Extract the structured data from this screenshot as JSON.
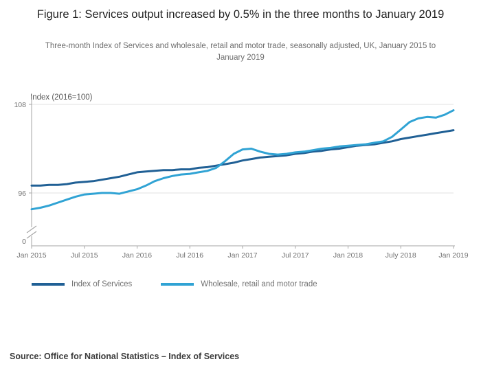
{
  "title": "Figure 1: Services output increased by 0.5% in the three months to January 2019",
  "subtitle": "Three-month Index of Services and wholesale, retail and motor trade, seasonally adjusted, UK, January 2015 to January 2019",
  "source": "Source: Office for National Statistics – Index of Services",
  "chart_data": {
    "type": "line",
    "title": "Figure 1: Services output increased by 0.5% in the three months to January 2019",
    "subtitle": "Three-month Index of Services and wholesale, retail and motor trade, seasonally adjusted, UK, January 2015 to January 2019",
    "y_axis_title": "Index (2016=100)",
    "y_ticks": [
      108,
      96,
      0
    ],
    "y_axis_break": true,
    "ylim_plot": [
      92,
      108.5
    ],
    "x_frequency": "monthly",
    "x_start": "Jan 2015",
    "x_end": "Jan 2019",
    "x_ticks": [
      "Jan 2015",
      "Jul 2015",
      "Jan 2016",
      "Jul 2016",
      "Jan 2017",
      "Jul 2017",
      "Jan 2018",
      "July 2018",
      "Jan 2019"
    ],
    "grid": "horizontal",
    "legend_position": "bottom-left",
    "colors": {
      "axis": "#a6a6a6",
      "grid": "#e2e2e2",
      "tick_text": "#707070"
    },
    "series": [
      {
        "name": "Index of Services",
        "color": "#206095",
        "values": [
          97.0,
          97.0,
          97.1,
          97.1,
          97.2,
          97.4,
          97.5,
          97.6,
          97.8,
          98.0,
          98.2,
          98.5,
          98.8,
          98.9,
          99.0,
          99.1,
          99.1,
          99.2,
          99.2,
          99.4,
          99.5,
          99.7,
          99.9,
          100.1,
          100.4,
          100.6,
          100.8,
          100.9,
          101.0,
          101.1,
          101.3,
          101.4,
          101.6,
          101.7,
          101.9,
          102.0,
          102.2,
          102.4,
          102.5,
          102.6,
          102.8,
          103.0,
          103.3,
          103.5,
          103.7,
          103.9,
          104.1,
          104.3,
          104.5
        ]
      },
      {
        "name": "Wholesale, retail and motor trade",
        "color": "#30a3d4",
        "values": [
          93.8,
          94.0,
          94.3,
          94.7,
          95.1,
          95.5,
          95.8,
          95.9,
          96.0,
          96.0,
          95.9,
          96.2,
          96.5,
          97.0,
          97.6,
          98.0,
          98.3,
          98.5,
          98.6,
          98.8,
          99.0,
          99.4,
          100.3,
          101.3,
          101.9,
          102.0,
          101.6,
          101.3,
          101.2,
          101.3,
          101.5,
          101.6,
          101.8,
          102.0,
          102.1,
          102.3,
          102.4,
          102.5,
          102.6,
          102.8,
          103.0,
          103.6,
          104.6,
          105.6,
          106.1,
          106.3,
          106.2,
          106.6,
          107.2
        ]
      }
    ]
  }
}
